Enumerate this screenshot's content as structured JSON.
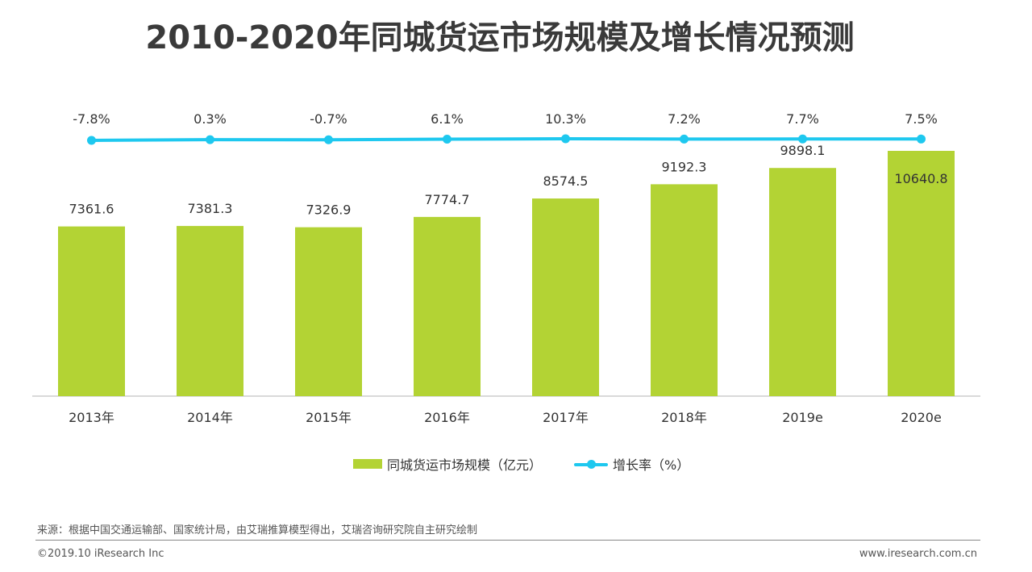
{
  "title": "2010-2020年同城货运市场规模及增长情况预测",
  "colors": {
    "bar": "#b3d334",
    "line": "#1ec8ef",
    "axis": "#d9d9d9",
    "text": "#333333"
  },
  "chart_data": {
    "type": "bar",
    "categories": [
      "2013年",
      "2014年",
      "2015年",
      "2016年",
      "2017年",
      "2018年",
      "2019e",
      "2020e"
    ],
    "series": [
      {
        "name": "同城货运市场规模（亿元）",
        "type": "bar",
        "values": [
          7361.6,
          7381.3,
          7326.9,
          7774.7,
          8574.5,
          9192.3,
          9898.1,
          10640.8
        ],
        "labels": [
          "7361.6",
          "7381.3",
          "7326.9",
          "7774.7",
          "8574.5",
          "9192.3",
          "9898.1",
          "10640.8"
        ]
      },
      {
        "name": "增长率（%）",
        "type": "line",
        "values": [
          -7.8,
          0.3,
          -0.7,
          6.1,
          10.3,
          7.2,
          7.7,
          7.5
        ],
        "labels": [
          "-7.8%",
          "0.3%",
          "-0.7%",
          "6.1%",
          "10.3%",
          "7.2%",
          "7.7%",
          "7.5%"
        ]
      }
    ]
  },
  "legend": {
    "bar_label": "同城货运市场规模（亿元）",
    "line_label": "增长率（%）"
  },
  "source": "来源：根据中国交通运输部、国家统计局，由艾瑞推算模型得出，艾瑞咨询研究院自主研究绘制",
  "copyright": "©2019.10 iResearch Inc",
  "site": "www.iresearch.com.cn"
}
